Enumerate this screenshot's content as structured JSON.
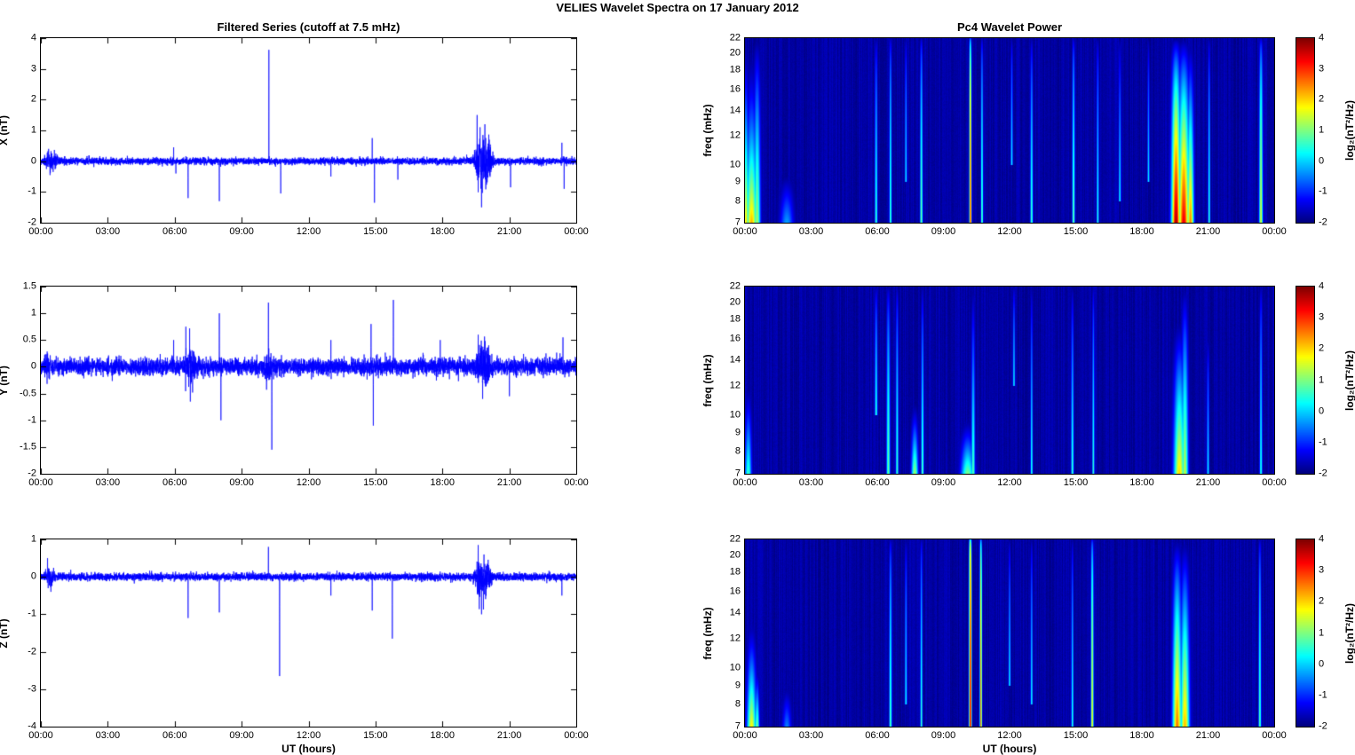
{
  "figure_title": "VELIES Wavelet Spectra on 17 January  2012",
  "xlabel": "UT (hours)",
  "x_ticks": [
    "00:00",
    "03:00",
    "06:00",
    "09:00",
    "12:00",
    "15:00",
    "18:00",
    "21:00",
    "00:00"
  ],
  "x_range_hours": [
    0,
    24
  ],
  "colors": {
    "line_color": "#0000ff",
    "spectrogram_base": "#00008f",
    "figure_bg": "#ffffff"
  },
  "colorbar": {
    "label": "log₂(nT²/Hz)",
    "ticks": [
      4,
      3,
      2,
      1,
      0,
      -1,
      -2
    ],
    "range": [
      -2,
      4
    ]
  },
  "chart_data": [
    {
      "type": "line",
      "title": "Filtered Series (cutoff at 7.5 mHz)",
      "ylabel": "X (nT)",
      "ylim": [
        -2,
        4
      ],
      "yticks": [
        -2,
        -1,
        0,
        1,
        2,
        3,
        4
      ],
      "noise_sigma": 0.055,
      "spikes": [
        {
          "t": 0.35,
          "amp": 0.4
        },
        {
          "t": 0.55,
          "amp": -0.35
        },
        {
          "t": 5.95,
          "amp": 0.45
        },
        {
          "t": 6.05,
          "amp": -0.4
        },
        {
          "t": 6.6,
          "amp": -1.2
        },
        {
          "t": 8.0,
          "amp": -1.3
        },
        {
          "t": 10.22,
          "amp": 3.62
        },
        {
          "t": 10.75,
          "amp": -1.05
        },
        {
          "t": 13.0,
          "amp": -0.5
        },
        {
          "t": 14.85,
          "amp": 0.75
        },
        {
          "t": 14.95,
          "amp": -1.35
        },
        {
          "t": 16.0,
          "amp": -0.6
        },
        {
          "t": 19.55,
          "amp": 1.5
        },
        {
          "t": 19.75,
          "amp": -1.5
        },
        {
          "t": 19.9,
          "amp": 1.2
        },
        {
          "t": 21.05,
          "amp": -0.85
        },
        {
          "t": 23.35,
          "amp": 0.6
        },
        {
          "t": 23.45,
          "amp": -0.9
        }
      ],
      "bursts": [
        {
          "t0": 0.0,
          "t1": 0.9,
          "sigma": 0.16
        },
        {
          "t0": 19.3,
          "t1": 20.4,
          "sigma": 0.45
        }
      ]
    },
    {
      "type": "line",
      "ylabel": "Y (nT)",
      "ylim": [
        -2,
        1.5
      ],
      "yticks": [
        -2,
        -1.5,
        -1,
        -0.5,
        0,
        0.5,
        1,
        1.5
      ],
      "noise_sigma": 0.075,
      "spikes": [
        {
          "t": 5.95,
          "amp": 0.5
        },
        {
          "t": 6.5,
          "amp": 0.75
        },
        {
          "t": 6.7,
          "amp": -0.65
        },
        {
          "t": 8.0,
          "amp": 1.0
        },
        {
          "t": 8.07,
          "amp": -1.0
        },
        {
          "t": 10.2,
          "amp": 1.2
        },
        {
          "t": 10.35,
          "amp": -1.55
        },
        {
          "t": 13.0,
          "amp": 0.5
        },
        {
          "t": 14.8,
          "amp": 0.8
        },
        {
          "t": 14.9,
          "amp": -1.1
        },
        {
          "t": 15.8,
          "amp": 1.25
        },
        {
          "t": 17.9,
          "amp": 0.5
        },
        {
          "t": 19.6,
          "amp": 0.6
        },
        {
          "t": 19.8,
          "amp": -0.6
        },
        {
          "t": 21.0,
          "amp": -0.55
        },
        {
          "t": 23.4,
          "amp": 0.55
        }
      ],
      "bursts": [
        {
          "t0": 0.0,
          "t1": 0.5,
          "sigma": 0.14
        },
        {
          "t0": 6.2,
          "t1": 7.2,
          "sigma": 0.18
        },
        {
          "t0": 9.8,
          "t1": 10.6,
          "sigma": 0.15
        },
        {
          "t0": 19.3,
          "t1": 20.4,
          "sigma": 0.22
        }
      ]
    },
    {
      "type": "line",
      "ylabel": "Z (nT)",
      "ylim": [
        -4,
        1
      ],
      "yticks": [
        -4,
        -3,
        -2,
        -1,
        0,
        1
      ],
      "noise_sigma": 0.05,
      "spikes": [
        {
          "t": 0.3,
          "amp": 0.5
        },
        {
          "t": 0.45,
          "amp": -0.4
        },
        {
          "t": 6.6,
          "amp": -1.1
        },
        {
          "t": 8.0,
          "amp": -0.95
        },
        {
          "t": 10.2,
          "amp": 0.8
        },
        {
          "t": 10.7,
          "amp": -2.65
        },
        {
          "t": 13.0,
          "amp": -0.5
        },
        {
          "t": 14.85,
          "amp": -0.9
        },
        {
          "t": 15.75,
          "amp": -1.65
        },
        {
          "t": 19.6,
          "amp": 0.85
        },
        {
          "t": 19.75,
          "amp": -1.0
        },
        {
          "t": 23.35,
          "amp": -0.5
        }
      ],
      "bursts": [
        {
          "t0": 0.0,
          "t1": 0.8,
          "sigma": 0.12
        },
        {
          "t0": 19.3,
          "t1": 20.3,
          "sigma": 0.3
        }
      ]
    },
    {
      "type": "heatmap",
      "title": "Pc4 Wavelet Power",
      "ylabel": "freq (mHz)",
      "ylim": [
        7,
        22
      ],
      "yticks": [
        7,
        8,
        9,
        10,
        12,
        14,
        16,
        18,
        20,
        22
      ],
      "freq_scale": "log",
      "base_power": -2,
      "events": [
        {
          "t": 0.05,
          "w": 0.1,
          "fmin": 7,
          "fmax": 22,
          "power": 2.0,
          "decay": 1.2
        },
        {
          "t": 0.3,
          "w": 0.25,
          "fmin": 7,
          "fmax": 22,
          "power": 2.2,
          "decay": 1.5
        },
        {
          "t": 0.55,
          "w": 0.15,
          "fmin": 7,
          "fmax": 22,
          "power": 1.2,
          "decay": 0.8
        },
        {
          "t": 1.9,
          "w": 0.3,
          "fmin": 7,
          "fmax": 9.5,
          "power": -0.3,
          "decay": 1.0
        },
        {
          "t": 5.95,
          "w": 0.06,
          "fmin": 7,
          "fmax": 22,
          "power": 0.6,
          "decay": 0.5
        },
        {
          "t": 6.6,
          "w": 0.05,
          "fmin": 7,
          "fmax": 22,
          "power": 0.8,
          "decay": 0.4
        },
        {
          "t": 7.3,
          "w": 0.05,
          "fmin": 9,
          "fmax": 22,
          "power": 0.2,
          "decay": 0.5
        },
        {
          "t": 8.0,
          "w": 0.06,
          "fmin": 7,
          "fmax": 22,
          "power": 0.9,
          "decay": 0.4
        },
        {
          "t": 10.22,
          "w": 0.05,
          "fmin": 7,
          "fmax": 22,
          "power": 3.2,
          "decay": 0.25
        },
        {
          "t": 10.75,
          "w": 0.05,
          "fmin": 7,
          "fmax": 22,
          "power": 0.9,
          "decay": 0.4
        },
        {
          "t": 12.1,
          "w": 0.05,
          "fmin": 10,
          "fmax": 22,
          "power": 0.2,
          "decay": 0.5
        },
        {
          "t": 13.0,
          "w": 0.06,
          "fmin": 7,
          "fmax": 22,
          "power": 0.7,
          "decay": 0.5
        },
        {
          "t": 14.9,
          "w": 0.06,
          "fmin": 7,
          "fmax": 22,
          "power": 0.9,
          "decay": 0.4
        },
        {
          "t": 16.0,
          "w": 0.05,
          "fmin": 7,
          "fmax": 22,
          "power": 0.5,
          "decay": 0.5
        },
        {
          "t": 17.0,
          "w": 0.05,
          "fmin": 8,
          "fmax": 22,
          "power": 0.3,
          "decay": 0.6
        },
        {
          "t": 18.3,
          "w": 0.05,
          "fmin": 9,
          "fmax": 22,
          "power": 0.2,
          "decay": 0.6
        },
        {
          "t": 19.55,
          "w": 0.2,
          "fmin": 7,
          "fmax": 22,
          "power": 3.8,
          "decay": 0.7
        },
        {
          "t": 19.9,
          "w": 0.25,
          "fmin": 7,
          "fmax": 22,
          "power": 3.4,
          "decay": 0.8
        },
        {
          "t": 20.2,
          "w": 0.15,
          "fmin": 7,
          "fmax": 22,
          "power": 2.5,
          "decay": 1.0
        },
        {
          "t": 21.05,
          "w": 0.05,
          "fmin": 7,
          "fmax": 22,
          "power": 0.6,
          "decay": 0.5
        },
        {
          "t": 23.4,
          "w": 0.08,
          "fmin": 7,
          "fmax": 22,
          "power": 1.6,
          "decay": 0.4
        }
      ]
    },
    {
      "type": "heatmap",
      "ylabel": "freq (mHz)",
      "ylim": [
        7,
        22
      ],
      "yticks": [
        7,
        8,
        9,
        10,
        12,
        14,
        16,
        18,
        20,
        22
      ],
      "freq_scale": "log",
      "base_power": -2,
      "events": [
        {
          "t": 0.15,
          "w": 0.15,
          "fmin": 7,
          "fmax": 12,
          "power": 0.6,
          "decay": 1.0
        },
        {
          "t": 5.95,
          "w": 0.06,
          "fmin": 10,
          "fmax": 22,
          "power": 0.5,
          "decay": 0.5
        },
        {
          "t": 6.5,
          "w": 0.08,
          "fmin": 7,
          "fmax": 22,
          "power": 0.9,
          "decay": 0.5
        },
        {
          "t": 6.9,
          "w": 0.06,
          "fmin": 7,
          "fmax": 22,
          "power": 0.6,
          "decay": 0.5
        },
        {
          "t": 7.7,
          "w": 0.15,
          "fmin": 7,
          "fmax": 11,
          "power": 1.2,
          "decay": 1.2
        },
        {
          "t": 8.05,
          "w": 0.06,
          "fmin": 7,
          "fmax": 22,
          "power": 0.8,
          "decay": 0.6
        },
        {
          "t": 10.1,
          "w": 0.3,
          "fmin": 7,
          "fmax": 10,
          "power": 1.0,
          "decay": 1.3
        },
        {
          "t": 10.35,
          "w": 0.08,
          "fmin": 7,
          "fmax": 22,
          "power": 0.8,
          "decay": 0.8
        },
        {
          "t": 12.2,
          "w": 0.05,
          "fmin": 12,
          "fmax": 22,
          "power": 0.2,
          "decay": 0.5
        },
        {
          "t": 13.0,
          "w": 0.05,
          "fmin": 7,
          "fmax": 22,
          "power": 0.5,
          "decay": 0.6
        },
        {
          "t": 14.85,
          "w": 0.06,
          "fmin": 7,
          "fmax": 22,
          "power": 0.6,
          "decay": 0.6
        },
        {
          "t": 15.8,
          "w": 0.05,
          "fmin": 7,
          "fmax": 22,
          "power": 0.6,
          "decay": 0.5
        },
        {
          "t": 19.7,
          "w": 0.25,
          "fmin": 7,
          "fmax": 18,
          "power": 2.0,
          "decay": 1.0
        },
        {
          "t": 19.95,
          "w": 0.15,
          "fmin": 7,
          "fmax": 22,
          "power": 1.4,
          "decay": 0.8
        },
        {
          "t": 21.0,
          "w": 0.05,
          "fmin": 7,
          "fmax": 16,
          "power": 0.3,
          "decay": 0.6
        },
        {
          "t": 23.4,
          "w": 0.06,
          "fmin": 7,
          "fmax": 22,
          "power": 0.5,
          "decay": 0.5
        }
      ]
    },
    {
      "type": "heatmap",
      "ylabel": "freq (mHz)",
      "ylim": [
        7,
        22
      ],
      "yticks": [
        7,
        8,
        9,
        10,
        12,
        14,
        16,
        18,
        20,
        22
      ],
      "freq_scale": "log",
      "base_power": -2,
      "events": [
        {
          "t": 0.3,
          "w": 0.2,
          "fmin": 7,
          "fmax": 14,
          "power": 1.8,
          "decay": 1.3
        },
        {
          "t": 0.55,
          "w": 0.1,
          "fmin": 7,
          "fmax": 10,
          "power": 1.0,
          "decay": 1.0
        },
        {
          "t": 1.9,
          "w": 0.2,
          "fmin": 7,
          "fmax": 9,
          "power": -0.5,
          "decay": 1.0
        },
        {
          "t": 6.6,
          "w": 0.06,
          "fmin": 7,
          "fmax": 22,
          "power": 0.8,
          "decay": 0.4
        },
        {
          "t": 7.3,
          "w": 0.05,
          "fmin": 8,
          "fmax": 22,
          "power": 0.3,
          "decay": 0.5
        },
        {
          "t": 8.0,
          "w": 0.05,
          "fmin": 7,
          "fmax": 22,
          "power": 0.6,
          "decay": 0.4
        },
        {
          "t": 10.22,
          "w": 0.06,
          "fmin": 7,
          "fmax": 22,
          "power": 3.6,
          "decay": 0.15
        },
        {
          "t": 10.7,
          "w": 0.05,
          "fmin": 7,
          "fmax": 22,
          "power": 2.6,
          "decay": 0.2
        },
        {
          "t": 12.0,
          "w": 0.05,
          "fmin": 9,
          "fmax": 22,
          "power": 0.2,
          "decay": 0.5
        },
        {
          "t": 13.0,
          "w": 0.05,
          "fmin": 8,
          "fmax": 22,
          "power": 0.3,
          "decay": 0.5
        },
        {
          "t": 14.85,
          "w": 0.05,
          "fmin": 7,
          "fmax": 22,
          "power": 0.5,
          "decay": 0.5
        },
        {
          "t": 15.75,
          "w": 0.06,
          "fmin": 7,
          "fmax": 22,
          "power": 1.8,
          "decay": 0.3
        },
        {
          "t": 19.6,
          "w": 0.2,
          "fmin": 7,
          "fmax": 22,
          "power": 2.6,
          "decay": 0.8
        },
        {
          "t": 19.95,
          "w": 0.2,
          "fmin": 7,
          "fmax": 22,
          "power": 2.2,
          "decay": 0.9
        },
        {
          "t": 23.35,
          "w": 0.06,
          "fmin": 7,
          "fmax": 22,
          "power": 0.8,
          "decay": 0.4
        }
      ]
    }
  ]
}
